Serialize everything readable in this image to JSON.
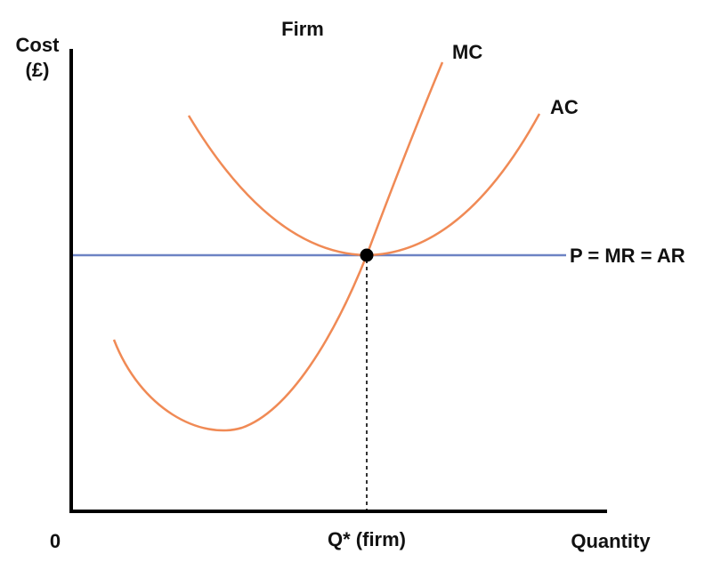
{
  "title": "Firm",
  "y_axis_label": {
    "line1": "Cost",
    "line2": "(£)"
  },
  "x_axis_label": "Quantity",
  "origin_label": "0",
  "q_star_label": "Q* (firm)",
  "curves": {
    "mc": {
      "label": "MC"
    },
    "ac": {
      "label": "AC"
    },
    "price": {
      "label": "P = MR = AR"
    }
  },
  "colors": {
    "cost_curves": "#f08a55",
    "price_line": "#6d83c4",
    "axes": "#000000",
    "equilibrium_point": "#000000"
  }
}
